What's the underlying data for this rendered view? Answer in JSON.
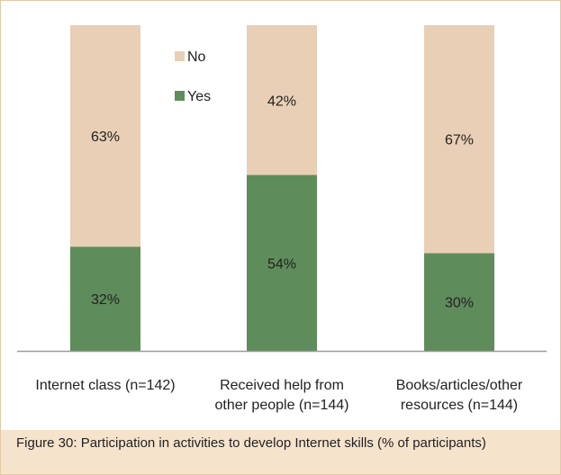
{
  "chart_data": {
    "type": "bar",
    "stacked": true,
    "categories": [
      [
        "Internet class (n=142)"
      ],
      [
        "Received help from",
        "other people (n=144)"
      ],
      [
        "Books/articles/other",
        "resources (n=144)"
      ]
    ],
    "series": [
      {
        "name": "Yes",
        "values": [
          32,
          54,
          30
        ],
        "labels": [
          "32%",
          "54%",
          "30%"
        ],
        "color": "#5f8c5b"
      },
      {
        "name": "No",
        "values": [
          63,
          42,
          67
        ],
        "labels": [
          "63%",
          "42%",
          "67%"
        ],
        "color": "#e8cfb5"
      }
    ],
    "ylim": [
      0,
      100
    ],
    "legend": {
      "position": "top-center",
      "order": [
        "No",
        "Yes"
      ]
    },
    "grid": false
  },
  "caption": "Figure 30: Participation in activities to develop Internet skills    (% of participants)"
}
